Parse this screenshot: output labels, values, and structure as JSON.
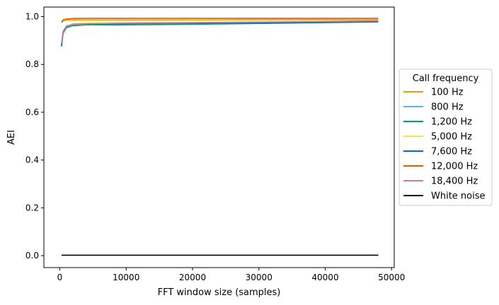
{
  "chart_data": {
    "type": "line",
    "title": "",
    "xlabel": "FFT window size (samples)",
    "ylabel": "AEI",
    "xlim": [
      -2400,
      50400
    ],
    "ylim": [
      -0.05,
      1.04
    ],
    "xticks": [
      0,
      10000,
      20000,
      30000,
      40000,
      50000
    ],
    "xtick_labels": [
      "0",
      "10000",
      "20000",
      "30000",
      "40000",
      "50000"
    ],
    "yticks": [
      0.0,
      0.2,
      0.4,
      0.6,
      0.8,
      1.0
    ],
    "ytick_labels": [
      "0.0",
      "0.2",
      "0.4",
      "0.6",
      "0.8",
      "1.0"
    ],
    "grid": false,
    "legend_title": "Call frequency",
    "legend_position": "outside-right",
    "series": [
      {
        "name": "100 Hz",
        "color": "#E69F00",
        "x": [
          256,
          512,
          1024,
          2048,
          4096,
          8192,
          16384,
          32768,
          48000
        ],
        "y": [
          0.975,
          0.982,
          0.985,
          0.986,
          0.986,
          0.986,
          0.986,
          0.987,
          0.987
        ]
      },
      {
        "name": "800 Hz",
        "color": "#56B4E9",
        "x": [
          256,
          512,
          1024,
          2048,
          4096,
          8192,
          16384,
          32768,
          48000
        ],
        "y": [
          0.88,
          0.93,
          0.955,
          0.965,
          0.968,
          0.97,
          0.972,
          0.977,
          0.98
        ]
      },
      {
        "name": "1,200 Hz",
        "color": "#009E73",
        "x": [
          256,
          512,
          1024,
          2048,
          4096,
          8192,
          16384,
          32768,
          48000
        ],
        "y": [
          0.88,
          0.935,
          0.955,
          0.962,
          0.966,
          0.965,
          0.967,
          0.972,
          0.978
        ]
      },
      {
        "name": "5,000 Hz",
        "color": "#F0E442",
        "x": [
          256,
          512,
          1024,
          2048,
          4096,
          8192,
          16384,
          32768,
          48000
        ],
        "y": [
          0.88,
          0.94,
          0.962,
          0.97,
          0.973,
          0.975,
          0.976,
          0.978,
          0.98
        ]
      },
      {
        "name": "7,600 Hz",
        "color": "#0072B2",
        "x": [
          256,
          512,
          1024,
          2048,
          4096,
          8192,
          16384,
          32768,
          48000
        ],
        "y": [
          0.875,
          0.94,
          0.96,
          0.968,
          0.97,
          0.97,
          0.972,
          0.975,
          0.978
        ]
      },
      {
        "name": "12,000 Hz",
        "color": "#D55E00",
        "x": [
          256,
          512,
          1024,
          2048,
          4096,
          8192,
          16384,
          32768,
          48000
        ],
        "y": [
          0.975,
          0.987,
          0.99,
          0.992,
          0.993,
          0.993,
          0.993,
          0.993,
          0.993
        ]
      },
      {
        "name": "18,400 Hz",
        "color": "#CC79A7",
        "x": [
          256,
          512,
          1024,
          2048,
          4096,
          8192,
          16384,
          32768,
          48000
        ],
        "y": [
          0.89,
          0.94,
          0.96,
          0.967,
          0.97,
          0.972,
          0.974,
          0.978,
          0.982
        ]
      },
      {
        "name": "White noise",
        "color": "#000000",
        "x": [
          256,
          512,
          1024,
          2048,
          4096,
          8192,
          16384,
          32768,
          48000
        ],
        "y": [
          0.002,
          0.002,
          0.002,
          0.002,
          0.002,
          0.002,
          0.002,
          0.002,
          0.002
        ]
      }
    ]
  }
}
